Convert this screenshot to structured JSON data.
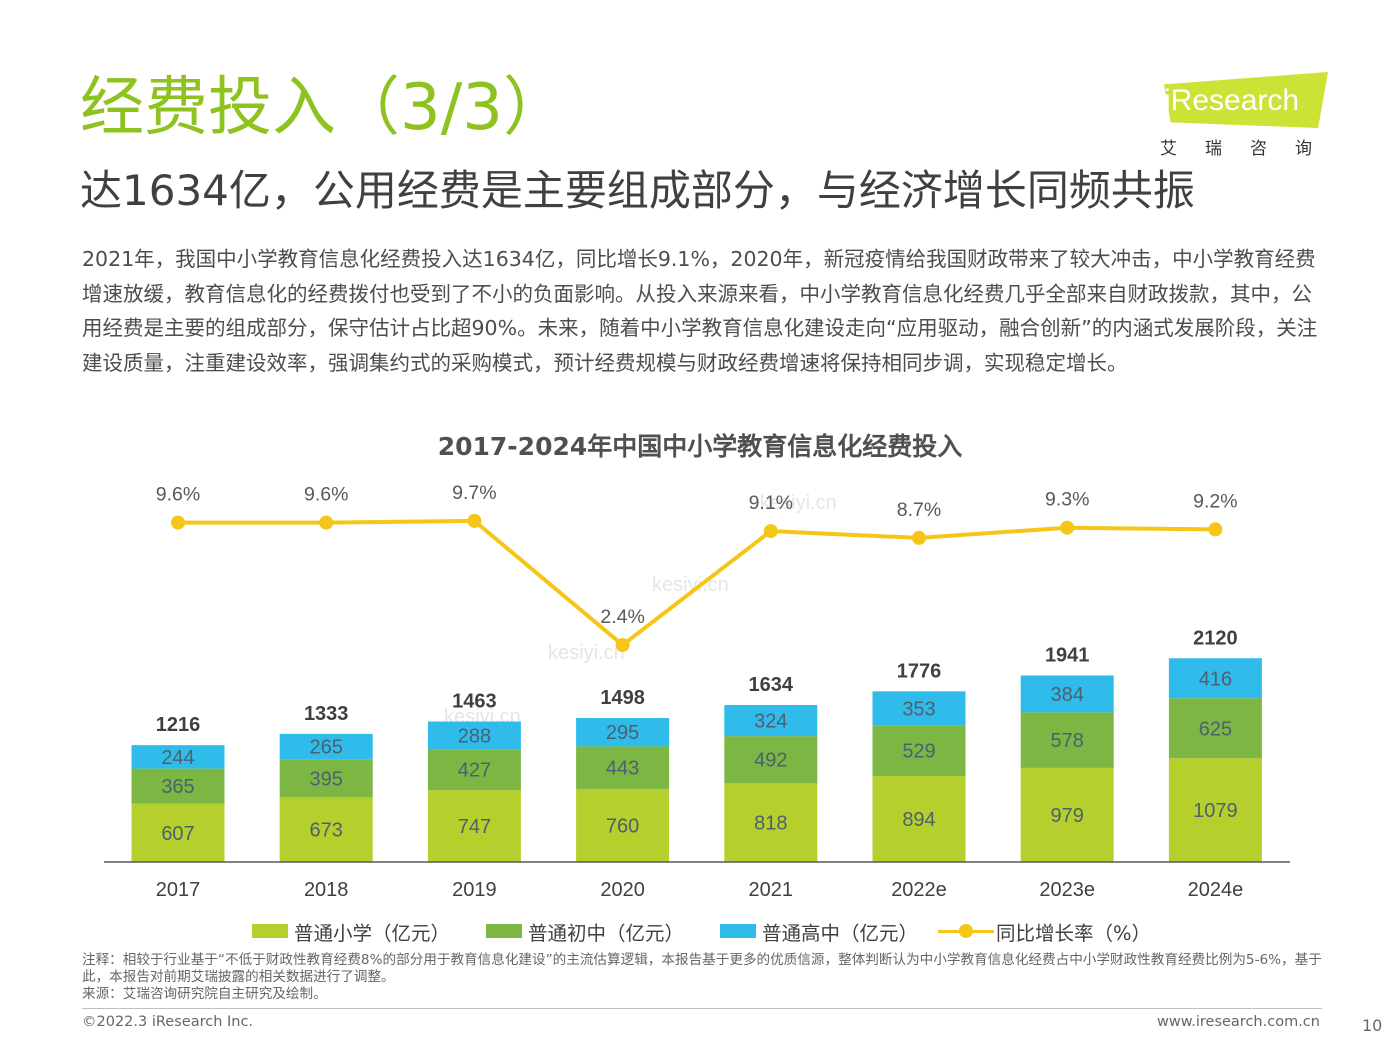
{
  "header": {
    "title": "经费投入（3/3）",
    "subtitle": "达1634亿，公用经费是主要组成部分，与经济增长同频共振"
  },
  "logo": {
    "text": "iResearch",
    "cn": "艾瑞咨询"
  },
  "body_text": "2021年，我国中小学教育信息化经费投入达1634亿，同比增长9.1%，2020年，新冠疫情给我国财政带来了较大冲击，中小学教育经费增速放缓，教育信息化的经费拨付也受到了不小的负面影响。从投入来源来看，中小学教育信息化经费几乎全部来自财政拨款，其中，公用经费是主要的组成部分，保守估计占比超90%。未来，随着中小学教育信息化建设走向“应用驱动，融合创新”的内涵式发展阶段，关注建设质量，注重建设效率，强调集约式的采购模式，预计经费规模与财政经费增速将保持相同步调，实现稳定增长。",
  "watermark": [
    "kesiyi.cn",
    "kesiyi.cn",
    "kesiyi.cn",
    "kesiyi.cn"
  ],
  "chart_data": {
    "type": "bar",
    "title": "2017-2024年中国中小学教育信息化经费投入",
    "categories": [
      "2017",
      "2018",
      "2019",
      "2020",
      "2021",
      "2022e",
      "2023e",
      "2024e"
    ],
    "stacked": true,
    "series": [
      {
        "name": "普通小学（亿元）",
        "values": [
          607,
          673,
          747,
          760,
          818,
          894,
          979,
          1079
        ],
        "color": "#b5cf2d"
      },
      {
        "name": "普通初中（亿元）",
        "values": [
          365,
          395,
          427,
          443,
          492,
          529,
          578,
          625
        ],
        "color": "#7cb743"
      },
      {
        "name": "普通高中（亿元）",
        "values": [
          244,
          265,
          288,
          295,
          324,
          353,
          384,
          416
        ],
        "color": "#2fbcea"
      }
    ],
    "totals": [
      1216,
      1333,
      1463,
      1498,
      1634,
      1776,
      1941,
      2120
    ],
    "line_series": {
      "name": "同比增长率（%）",
      "values": [
        9.6,
        9.6,
        9.7,
        2.4,
        9.1,
        8.7,
        9.3,
        9.2
      ],
      "labels": [
        "9.6%",
        "9.6%",
        "9.7%",
        "2.4%",
        "9.1%",
        "8.7%",
        "9.3%",
        "9.2%"
      ],
      "color": "#f5c518"
    },
    "legend_position": "bottom",
    "grid": false
  },
  "legend": [
    {
      "label": "普通小学（亿元）",
      "color": "#b5cf2d"
    },
    {
      "label": "普通初中（亿元）",
      "color": "#7cb743"
    },
    {
      "label": "普通高中（亿元）",
      "color": "#2fbcea"
    },
    {
      "label": "同比增长率（%）",
      "color": "#f5c518"
    }
  ],
  "notes": {
    "note": "注释：相较于行业基于“不低于财政性教育经费8%的部分用于教育信息化建设”的主流估算逻辑，本报告基于更多的优质信源，整体判断认为中小学教育信息化经费占中小学财政性教育经费比例为5-6%，基于此，本报告对前期艾瑞披露的相关数据进行了调整。",
    "source": "来源：艾瑞咨询研究院自主研究及绘制。"
  },
  "footer": {
    "copyright": "©2022.3 iResearch Inc.",
    "website": "www.iresearch.com.cn",
    "page": "10"
  }
}
